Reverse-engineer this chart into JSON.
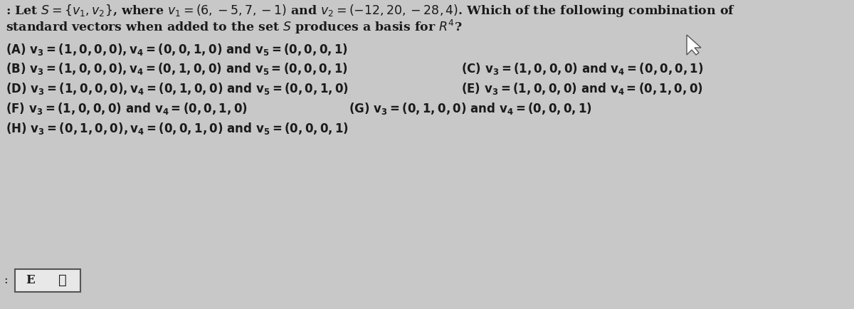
{
  "bg_color": "#c8c8c8",
  "text_color": "#1a1a1a",
  "title_line1": ": Let $S = \\{v_1, v_2\\}$, where $v_1 = (6, -5, 7, -1)$ and $v_2 = (-12, 20, -28, 4)$. Which of the following combination of",
  "title_line2": "standard vectors when added to the set $S$ produces a basis for $R^4$?",
  "line_A": "$\\mathbf{(A)}$ $\\mathbf{v_3 = (1, 0, 0, 0), v_4 = (0, 0, 1, 0)}$ $\\mathbf{and}$ $\\mathbf{v_5 = (0, 0, 0, 1)}$",
  "line_BC_B": "$\\mathbf{(B)}$ $\\mathbf{v_3 = (1, 0, 0, 0), v_4 = (0, 1, 0, 0)}$ $\\mathbf{and}$ $\\mathbf{v_5 = (0, 0, 0, 1)}$",
  "line_BC_C": "$\\mathbf{(C)}$ $\\mathbf{v_3 = (1, 0, 0, 0)}$ $\\mathbf{and}$ $\\mathbf{v_4 = (0, 0, 0, 1)}$",
  "line_DE_D": "$\\mathbf{(D)}$ $\\mathbf{v_3 = (1, 0, 0, 0), v_4 = (0, 1, 0, 0)}$ $\\mathbf{and}$ $\\mathbf{v_5 = (0, 0, 1, 0)}$",
  "line_DE_E": "$\\mathbf{(E)}$ $\\mathbf{v_3 = (1, 0, 0, 0)}$ $\\mathbf{and}$ $\\mathbf{v_4 = (0, 1, 0, 0)}$",
  "line_FG_F": "$\\mathbf{(F)}$ $\\mathbf{v_3 = (1, 0, 0, 0)}$ $\\mathbf{and}$ $\\mathbf{v_4 = (0, 0, 1, 0)}$",
  "line_FG_G": "$\\mathbf{(G)}$ $\\mathbf{v_3 = (0, 1, 0, 0)}$ $\\mathbf{and}$ $\\mathbf{v_4 = (0, 0, 0, 1)}$",
  "line_H": "$\\mathbf{(H)}$ $\\mathbf{v_3 = (0, 1, 0, 0), v_4 = (0, 0, 1, 0)}$ $\\mathbf{and}$ $\\mathbf{v_5 = (0, 0, 0, 1)}$",
  "answer_label": "E",
  "title_fs": 12.5,
  "body_fs": 12.0
}
